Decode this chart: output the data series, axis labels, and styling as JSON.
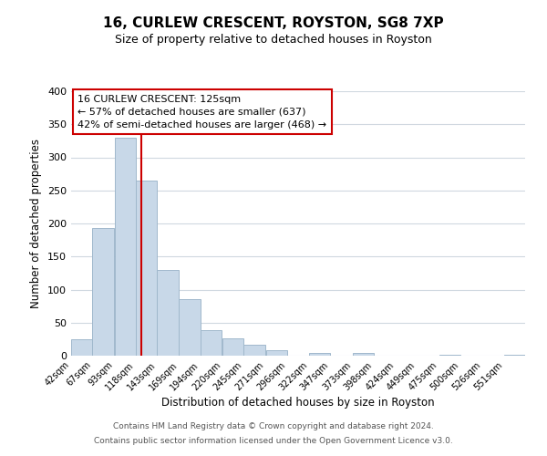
{
  "title": "16, CURLEW CRESCENT, ROYSTON, SG8 7XP",
  "subtitle": "Size of property relative to detached houses in Royston",
  "xlabel": "Distribution of detached houses by size in Royston",
  "ylabel": "Number of detached properties",
  "bar_color": "#c8d8e8",
  "bar_edge_color": "#a0b8cc",
  "bins": [
    42,
    67,
    93,
    118,
    143,
    169,
    194,
    220,
    245,
    271,
    296,
    322,
    347,
    373,
    398,
    424,
    449,
    475,
    500,
    526,
    551
  ],
  "counts": [
    25,
    193,
    330,
    265,
    130,
    86,
    38,
    26,
    17,
    8,
    0,
    4,
    0,
    4,
    0,
    0,
    0,
    2,
    0,
    0,
    2
  ],
  "tick_labels": [
    "42sqm",
    "67sqm",
    "93sqm",
    "118sqm",
    "143sqm",
    "169sqm",
    "194sqm",
    "220sqm",
    "245sqm",
    "271sqm",
    "296sqm",
    "322sqm",
    "347sqm",
    "373sqm",
    "398sqm",
    "424sqm",
    "449sqm",
    "475sqm",
    "500sqm",
    "526sqm",
    "551sqm"
  ],
  "vline_x": 125,
  "vline_color": "#cc0000",
  "annotation_text": "16 CURLEW CRESCENT: 125sqm\n← 57% of detached houses are smaller (637)\n42% of semi-detached houses are larger (468) →",
  "annotation_box_edgecolor": "#cc0000",
  "ylim": [
    0,
    400
  ],
  "yticks": [
    0,
    50,
    100,
    150,
    200,
    250,
    300,
    350,
    400
  ],
  "footnote1": "Contains HM Land Registry data © Crown copyright and database right 2024.",
  "footnote2": "Contains public sector information licensed under the Open Government Licence v3.0.",
  "bg_color": "#ffffff",
  "grid_color": "#d0d8e0"
}
